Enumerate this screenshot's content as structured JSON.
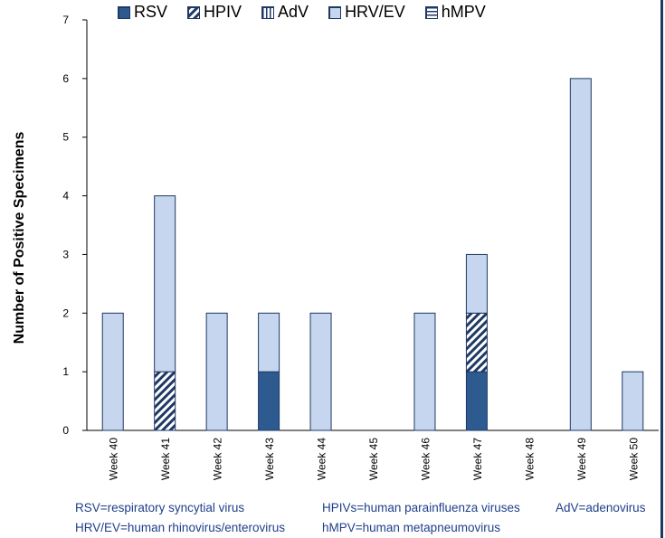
{
  "chart_data": {
    "type": "bar",
    "stacked": true,
    "title": "",
    "xlabel": "",
    "ylabel": "Number of Positive Specimens",
    "ylim": [
      0,
      7
    ],
    "yticks": [
      "0",
      "1",
      "2",
      "3",
      "4",
      "5",
      "6",
      "7"
    ],
    "categories": [
      "Week 40",
      "Week 41",
      "Week 42",
      "Week 43",
      "Week 44",
      "Week 45",
      "Week 46",
      "Week 47",
      "Week 48",
      "Week 49",
      "Week 50"
    ],
    "series": [
      {
        "name": "RSV",
        "pattern": "solid",
        "color": "#2e5b8f",
        "values": [
          0,
          0,
          0,
          1,
          0,
          0,
          0,
          1,
          0,
          0,
          0
        ]
      },
      {
        "name": "HPIV",
        "pattern": "diagonal",
        "color": "#1f3864",
        "values": [
          0,
          1,
          0,
          0,
          0,
          0,
          0,
          1,
          0,
          0,
          0
        ]
      },
      {
        "name": "AdV",
        "pattern": "vertical",
        "color": "#1f3864",
        "values": [
          0,
          0,
          0,
          0,
          0,
          0,
          0,
          0,
          0,
          0,
          0
        ]
      },
      {
        "name": "HRV/EV",
        "pattern": "light",
        "color": "#c6d6ee",
        "values": [
          2,
          3,
          2,
          1,
          2,
          0,
          2,
          1,
          0,
          6,
          1
        ]
      },
      {
        "name": "hMPV",
        "pattern": "horizontal",
        "color": "#1f3864",
        "values": [
          0,
          0,
          0,
          0,
          0,
          0,
          0,
          0,
          0,
          0,
          0
        ]
      }
    ],
    "grid": false,
    "legend_position": "top"
  },
  "footnotes": {
    "rsv": "RSV=respiratory syncytial virus",
    "hpiv": "HPIVs=human parainfluenza viruses",
    "adv": "AdV=adenovirus",
    "hrv": "HRV/EV=human rhinovirus/enterovirus",
    "hmpv": "hMPV=human metapneumovirus"
  },
  "colors": {
    "axis": "#000000",
    "bar_border": "#1f3864",
    "footnote_text": "#1f3f8a"
  }
}
